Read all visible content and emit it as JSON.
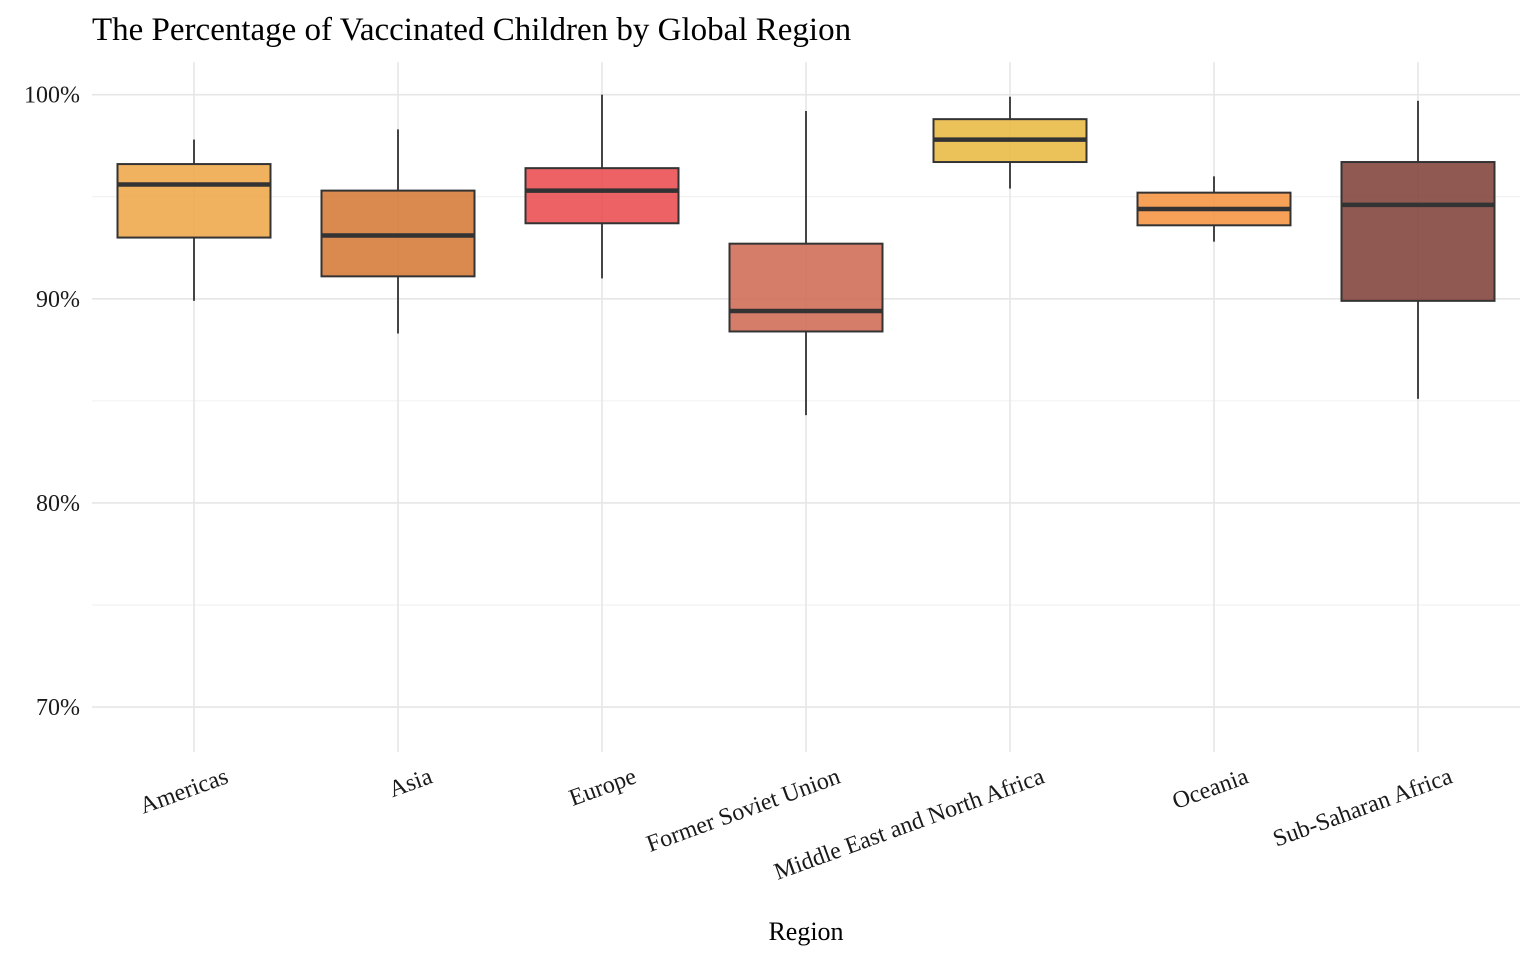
{
  "chart_data": {
    "type": "boxplot",
    "title": "The Percentage of Vaccinated Children by Global Region",
    "xlabel": "Region",
    "ylabel": "",
    "y_unit": "%",
    "ylim": [
      67.8,
      101.6
    ],
    "y_ticks": [
      70,
      80,
      90,
      100
    ],
    "y_tick_labels": [
      "70%",
      "80%",
      "90%",
      "100%"
    ],
    "grid": true,
    "legend": "none",
    "categories": [
      "Americas",
      "Asia",
      "Europe",
      "Former Soviet Union",
      "Middle East and North Africa",
      "Oceania",
      "Sub-Saharan Africa"
    ],
    "boxes": [
      {
        "category": "Americas",
        "min": 89.9,
        "q1": 93.0,
        "median": 95.6,
        "q3": 96.6,
        "max": 97.8,
        "color": "#EDA543"
      },
      {
        "category": "Asia",
        "min": 88.3,
        "q1": 91.1,
        "median": 93.1,
        "q3": 95.3,
        "max": 98.3,
        "color": "#D4752F"
      },
      {
        "category": "Europe",
        "min": 91.0,
        "q1": 93.7,
        "median": 95.3,
        "q3": 96.4,
        "max": 100.0,
        "color": "#E9474A"
      },
      {
        "category": "Former Soviet Union",
        "min": 84.3,
        "q1": 88.4,
        "median": 89.4,
        "q3": 92.7,
        "max": 99.2,
        "color": "#CF6650"
      },
      {
        "category": "Middle East and North Africa",
        "min": 95.4,
        "q1": 96.7,
        "median": 97.8,
        "q3": 98.8,
        "max": 99.9,
        "color": "#E7B73C"
      },
      {
        "category": "Oceania",
        "min": 92.8,
        "q1": 93.6,
        "median": 94.4,
        "q3": 95.2,
        "max": 96.0,
        "color": "#F58F3B"
      },
      {
        "category": "Sub-Saharan Africa",
        "min": 85.1,
        "q1": 89.9,
        "median": 94.6,
        "q3": 96.7,
        "max": 99.7,
        "color": "#7C3D34"
      }
    ]
  }
}
